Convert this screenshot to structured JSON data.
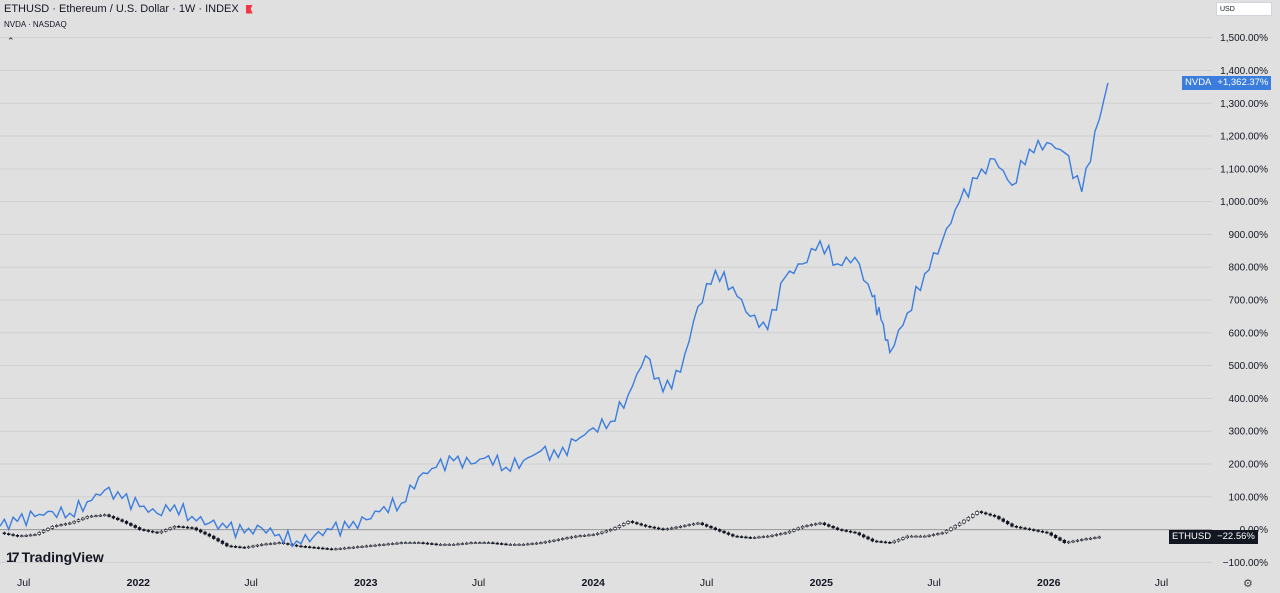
{
  "header": {
    "title": "ETHUSD · Ethereum / U.S. Dollar · 1W · INDEX",
    "compare": "NVDA · NASDAQ"
  },
  "currency_button": "USD",
  "brand": "TradingView",
  "colors": {
    "background": "#e0e0e0",
    "grid": "#cfcfcf",
    "nvda": "#3b7ddd",
    "eth": "#131722",
    "eth_tag": "#131722",
    "zero_line": "#999999"
  },
  "labels": {
    "nvda_name": "NVDA",
    "nvda_value": "+1,362.37%",
    "eth_name": "ETHUSD",
    "eth_value": "−22.56%"
  },
  "chart_data": {
    "type": "line",
    "y_scale": "percent",
    "ylim": [
      -105,
      1560
    ],
    "y_ticks": [
      -100,
      0,
      100,
      200,
      300,
      400,
      500,
      600,
      700,
      800,
      900,
      1000,
      1100,
      1200,
      1300,
      1400,
      1500
    ],
    "y_tick_labels": [
      "−100.00%",
      "0.00%",
      "100.00%",
      "200.00%",
      "300.00%",
      "400.00%",
      "500.00%",
      "600.00%",
      "700.00%",
      "800.00%",
      "900.00%",
      "1,000.00%",
      "1,100.00%",
      "1,200.00%",
      "1,300.00%",
      "1,400.00%",
      "1,500.00%"
    ],
    "xlim": [
      "2021-05-24",
      "2026-09-20"
    ],
    "x_ticks": [
      "2021-07-01",
      "2022-01-01",
      "2022-07-01",
      "2023-01-01",
      "2023-07-01",
      "2024-01-01",
      "2024-07-01",
      "2025-01-01",
      "2025-07-01",
      "2026-01-01",
      "2026-07-01"
    ],
    "x_tick_labels": [
      "Jul",
      "2022",
      "Jul",
      "2023",
      "Jul",
      "2024",
      "Jul",
      "2025",
      "Jul",
      "2026",
      "Jul"
    ],
    "grid": true,
    "series": [
      {
        "name": "NVDA",
        "style": "line",
        "x": [
          "2021-05-24",
          "2021-06-21",
          "2021-07-19",
          "2021-08-16",
          "2021-09-13",
          "2021-10-11",
          "2021-11-08",
          "2021-12-06",
          "2022-01-03",
          "2022-01-31",
          "2022-02-28",
          "2022-03-28",
          "2022-04-25",
          "2022-05-23",
          "2022-06-20",
          "2022-07-18",
          "2022-08-15",
          "2022-09-12",
          "2022-10-10",
          "2022-11-07",
          "2022-12-05",
          "2023-01-02",
          "2023-01-30",
          "2023-02-27",
          "2023-03-27",
          "2023-04-24",
          "2023-05-22",
          "2023-06-19",
          "2023-07-17",
          "2023-08-14",
          "2023-09-11",
          "2023-10-09",
          "2023-11-06",
          "2023-12-04",
          "2024-01-01",
          "2024-01-29",
          "2024-02-26",
          "2024-03-25",
          "2024-04-22",
          "2024-05-20",
          "2024-06-17",
          "2024-07-15",
          "2024-08-12",
          "2024-09-09",
          "2024-10-07",
          "2024-11-04",
          "2024-12-02",
          "2024-12-30",
          "2025-01-27",
          "2025-02-24",
          "2025-03-24",
          "2025-04-07",
          "2025-04-21",
          "2025-05-19",
          "2025-06-16",
          "2025-07-14",
          "2025-08-11",
          "2025-09-08",
          "2025-10-06",
          "2025-11-03",
          "2025-12-01",
          "2025-12-29",
          "2026-01-26",
          "2026-02-23",
          "2026-03-23",
          "2026-04-06"
        ],
        "values": [
          10,
          25,
          40,
          55,
          50,
          85,
          120,
          95,
          70,
          50,
          75,
          40,
          20,
          5,
          -10,
          5,
          -15,
          -35,
          -20,
          0,
          5,
          30,
          70,
          80,
          160,
          190,
          210,
          200,
          225,
          190,
          210,
          240,
          220,
          270,
          310,
          330,
          410,
          530,
          420,
          480,
          680,
          790,
          740,
          650,
          610,
          770,
          810,
          880,
          810,
          830,
          710,
          640,
          540,
          660,
          780,
          880,
          1000,
          1070,
          1130,
          1050,
          1160,
          1180,
          1150,
          1030,
          1250,
          1362
        ]
      },
      {
        "name": "ETHUSD",
        "style": "candles",
        "x": [
          "2021-05-24",
          "2021-06-21",
          "2021-07-19",
          "2021-08-16",
          "2021-09-13",
          "2021-10-11",
          "2021-11-08",
          "2021-12-06",
          "2022-01-03",
          "2022-01-31",
          "2022-02-28",
          "2022-03-28",
          "2022-04-25",
          "2022-05-23",
          "2022-06-20",
          "2022-07-18",
          "2022-08-15",
          "2022-09-12",
          "2022-10-10",
          "2022-11-07",
          "2022-12-05",
          "2023-01-02",
          "2023-01-30",
          "2023-02-27",
          "2023-03-27",
          "2023-04-24",
          "2023-05-22",
          "2023-06-19",
          "2023-07-17",
          "2023-08-14",
          "2023-09-11",
          "2023-10-09",
          "2023-11-06",
          "2023-12-04",
          "2024-01-01",
          "2024-01-29",
          "2024-02-26",
          "2024-03-25",
          "2024-04-22",
          "2024-05-20",
          "2024-06-17",
          "2024-07-15",
          "2024-08-12",
          "2024-09-09",
          "2024-10-07",
          "2024-11-04",
          "2024-12-02",
          "2024-12-30",
          "2025-01-27",
          "2025-02-24",
          "2025-03-24",
          "2025-04-21",
          "2025-05-19",
          "2025-06-16",
          "2025-07-14",
          "2025-08-11",
          "2025-09-08",
          "2025-10-06",
          "2025-11-03",
          "2025-12-01",
          "2025-12-29",
          "2026-01-26",
          "2026-02-23",
          "2026-03-23"
        ],
        "values": [
          -10,
          -20,
          -15,
          10,
          20,
          40,
          45,
          25,
          0,
          -10,
          10,
          5,
          -20,
          -50,
          -55,
          -45,
          -40,
          -50,
          -55,
          -60,
          -55,
          -50,
          -45,
          -40,
          -40,
          -45,
          -45,
          -40,
          -40,
          -45,
          -45,
          -40,
          -30,
          -20,
          -15,
          0,
          25,
          10,
          0,
          10,
          20,
          0,
          -20,
          -25,
          -20,
          -10,
          10,
          20,
          0,
          -10,
          -35,
          -40,
          -20,
          -20,
          -10,
          20,
          55,
          40,
          10,
          0,
          -10,
          -40,
          -30,
          -22.56
        ]
      }
    ]
  }
}
